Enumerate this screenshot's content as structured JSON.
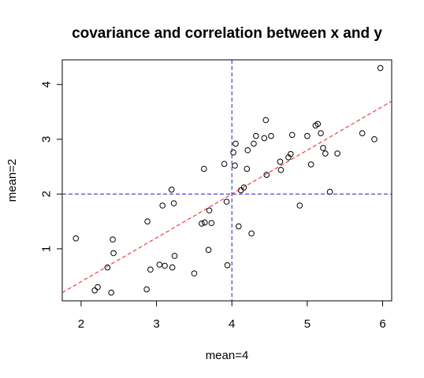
{
  "chart_data": {
    "type": "scatter",
    "title": "covariance and correlation between x and y",
    "xlabel": "mean=4",
    "ylabel": "mean=2",
    "xlim": [
      1.75,
      6.12
    ],
    "ylim": [
      0.05,
      4.45
    ],
    "xticks": [
      2,
      3,
      4,
      5,
      6
    ],
    "yticks": [
      1,
      2,
      3,
      4
    ],
    "grid": false,
    "colors": {
      "points": "#000000",
      "regression": "#e8202a",
      "mean_lines": "#2020c8"
    },
    "mean_lines": {
      "x": 4,
      "y": 2
    },
    "regression_line": {
      "slope": 0.8,
      "intercept": -1.2
    },
    "points": [
      {
        "x": 1.93,
        "y": 1.19
      },
      {
        "x": 2.18,
        "y": 0.24
      },
      {
        "x": 2.22,
        "y": 0.3
      },
      {
        "x": 2.35,
        "y": 0.66
      },
      {
        "x": 2.4,
        "y": 0.2
      },
      {
        "x": 2.42,
        "y": 1.17
      },
      {
        "x": 2.43,
        "y": 0.92
      },
      {
        "x": 2.87,
        "y": 0.26
      },
      {
        "x": 2.88,
        "y": 1.5
      },
      {
        "x": 2.92,
        "y": 0.62
      },
      {
        "x": 3.04,
        "y": 0.71
      },
      {
        "x": 3.08,
        "y": 1.79
      },
      {
        "x": 3.11,
        "y": 0.69
      },
      {
        "x": 3.2,
        "y": 2.08
      },
      {
        "x": 3.21,
        "y": 0.66
      },
      {
        "x": 3.23,
        "y": 1.83
      },
      {
        "x": 3.24,
        "y": 0.87
      },
      {
        "x": 3.5,
        "y": 0.55
      },
      {
        "x": 3.6,
        "y": 1.46
      },
      {
        "x": 3.63,
        "y": 2.46
      },
      {
        "x": 3.64,
        "y": 1.48
      },
      {
        "x": 3.69,
        "y": 0.98
      },
      {
        "x": 3.7,
        "y": 1.7
      },
      {
        "x": 3.73,
        "y": 1.47
      },
      {
        "x": 3.9,
        "y": 2.55
      },
      {
        "x": 3.93,
        "y": 1.86
      },
      {
        "x": 3.94,
        "y": 0.7
      },
      {
        "x": 4.02,
        "y": 2.76
      },
      {
        "x": 4.04,
        "y": 2.52
      },
      {
        "x": 4.05,
        "y": 2.92
      },
      {
        "x": 4.09,
        "y": 1.41
      },
      {
        "x": 4.12,
        "y": 2.07
      },
      {
        "x": 4.16,
        "y": 2.12
      },
      {
        "x": 4.2,
        "y": 2.46
      },
      {
        "x": 4.21,
        "y": 2.8
      },
      {
        "x": 4.26,
        "y": 1.28
      },
      {
        "x": 4.29,
        "y": 2.92
      },
      {
        "x": 4.32,
        "y": 3.06
      },
      {
        "x": 4.43,
        "y": 3.02
      },
      {
        "x": 4.45,
        "y": 3.35
      },
      {
        "x": 4.46,
        "y": 2.35
      },
      {
        "x": 4.52,
        "y": 3.06
      },
      {
        "x": 4.64,
        "y": 2.59
      },
      {
        "x": 4.65,
        "y": 2.44
      },
      {
        "x": 4.75,
        "y": 2.67
      },
      {
        "x": 4.78,
        "y": 2.73
      },
      {
        "x": 4.8,
        "y": 3.08
      },
      {
        "x": 4.9,
        "y": 1.79
      },
      {
        "x": 5.0,
        "y": 3.06
      },
      {
        "x": 5.05,
        "y": 2.54
      },
      {
        "x": 5.11,
        "y": 3.25
      },
      {
        "x": 5.14,
        "y": 3.28
      },
      {
        "x": 5.18,
        "y": 3.11
      },
      {
        "x": 5.21,
        "y": 2.84
      },
      {
        "x": 5.24,
        "y": 2.74
      },
      {
        "x": 5.3,
        "y": 2.04
      },
      {
        "x": 5.4,
        "y": 2.74
      },
      {
        "x": 5.73,
        "y": 3.11
      },
      {
        "x": 5.89,
        "y": 3.0
      },
      {
        "x": 5.97,
        "y": 4.3
      }
    ]
  }
}
